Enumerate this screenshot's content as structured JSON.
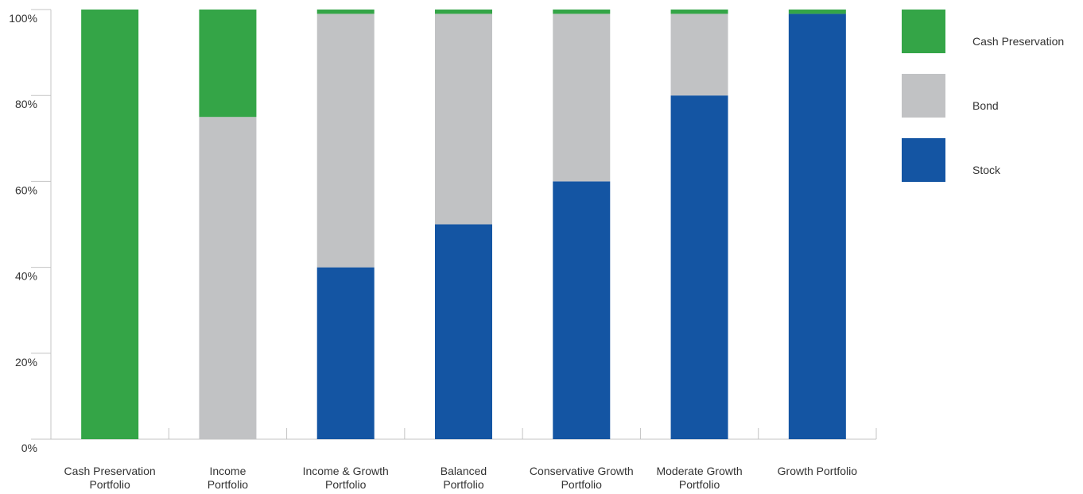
{
  "chart_data": {
    "type": "bar",
    "stacked": true,
    "title": "",
    "xlabel": "",
    "ylabel": "",
    "ylim": [
      0,
      100
    ],
    "y_ticks": [
      "0%",
      "20%",
      "40%",
      "60%",
      "80%",
      "100%"
    ],
    "grid": false,
    "legend_position": "right",
    "categories": [
      [
        "Cash Preservation",
        "Portfolio"
      ],
      [
        "Income",
        "Portfolio"
      ],
      [
        "Income & Growth",
        "Portfolio"
      ],
      [
        "Balanced",
        "Portfolio"
      ],
      [
        "Conservative Growth",
        "Portfolio"
      ],
      [
        "Moderate Growth",
        "Portfolio"
      ],
      [
        "Growth Portfolio"
      ]
    ],
    "series": [
      {
        "name": "Stock",
        "color": "#1455a3",
        "values": [
          0,
          0,
          40,
          50,
          60,
          80,
          99
        ]
      },
      {
        "name": "Bond",
        "color": "#c1c2c4",
        "values": [
          0,
          75,
          59,
          49,
          39,
          19,
          0
        ]
      },
      {
        "name": "Cash Preservation",
        "color": "#34a547",
        "values": [
          100,
          25,
          1,
          1,
          1,
          1,
          1
        ]
      }
    ],
    "legend_order": [
      "Cash Preservation",
      "Bond",
      "Stock"
    ]
  }
}
